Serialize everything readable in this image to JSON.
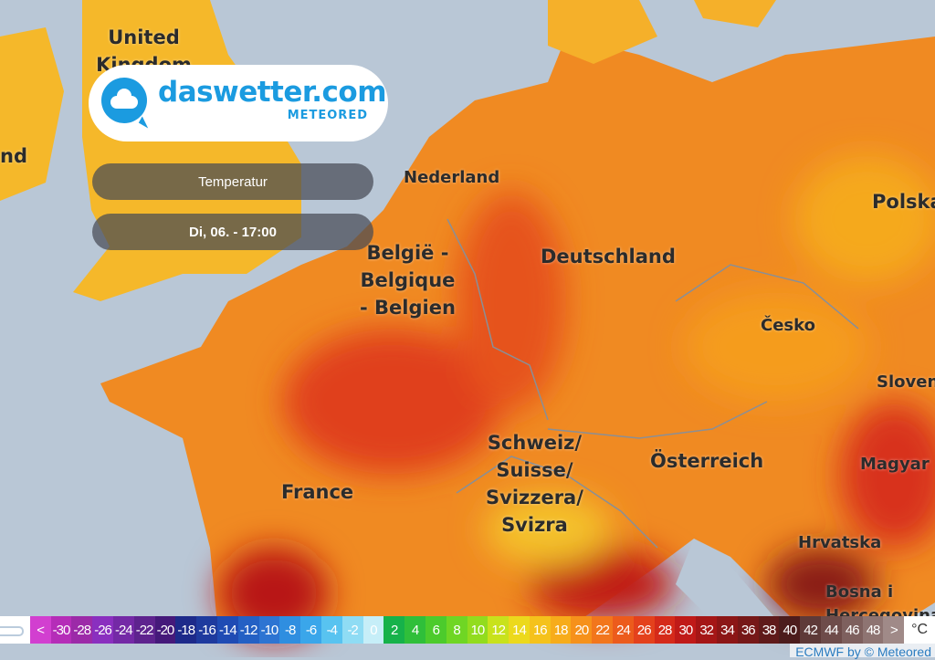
{
  "map": {
    "countries": [
      "United Kingdom",
      "Nederland",
      "België - Belgique - Belgien",
      "Deutschland",
      "Polska",
      "Česko",
      "France",
      "Schweiz/ Suisse/ Svizzera/ Svizra",
      "Österreich",
      "Slovenija",
      "Magyarország",
      "Hrvatska",
      "Bosna i Hercegovina",
      "Ireland"
    ],
    "labels": {
      "uk": "United Kingdom",
      "ireland_partial": "nd",
      "nl": "Nederland",
      "be": [
        "België -",
        "Belgique",
        "- Belgien"
      ],
      "de": "Deutschland",
      "pl": "Polska",
      "cz": "Česko",
      "fr": "France",
      "ch": [
        "Schweiz/",
        "Suisse/",
        "Svizzera/",
        "Svizra"
      ],
      "at": "Österreich",
      "si": "Sloven",
      "hu": "Magyar",
      "hr": "Hrvatska",
      "ba": [
        "Bosna i",
        "Hercegovina"
      ]
    }
  },
  "logo": {
    "name": "daswetter.com",
    "sub": "METEORED",
    "icon": "cloud-speech-bubble-icon",
    "color": "#1b9be0"
  },
  "layer_button": {
    "label": "Temperatur"
  },
  "time_button": {
    "label": "Di, 06. - 17:00"
  },
  "legend": {
    "unit": "°C",
    "cells": [
      {
        "t": "<",
        "c": "#d23fd0"
      },
      {
        "t": "-30",
        "c": "#b52db8"
      },
      {
        "t": "-28",
        "c": "#9c2aa8"
      },
      {
        "t": "-26",
        "c": "#8a2fbf"
      },
      {
        "t": "-24",
        "c": "#7429a6"
      },
      {
        "t": "-22",
        "c": "#5e238e"
      },
      {
        "t": "-20",
        "c": "#45197a"
      },
      {
        "t": "-18",
        "c": "#1d2a8a"
      },
      {
        "t": "-16",
        "c": "#1e3a9e"
      },
      {
        "t": "-14",
        "c": "#1f4bb4"
      },
      {
        "t": "-12",
        "c": "#2460c4"
      },
      {
        "t": "-10",
        "c": "#2d74d2"
      },
      {
        "t": "-8",
        "c": "#2f8ee0"
      },
      {
        "t": "-6",
        "c": "#3aa6ea"
      },
      {
        "t": "-4",
        "c": "#58c3f0"
      },
      {
        "t": "-2",
        "c": "#8fdcf4"
      },
      {
        "t": "0",
        "c": "#c6eef8"
      },
      {
        "t": "2",
        "c": "#16b24a"
      },
      {
        "t": "4",
        "c": "#2fbf3a"
      },
      {
        "t": "6",
        "c": "#4ccb2c"
      },
      {
        "t": "8",
        "c": "#6fd624"
      },
      {
        "t": "10",
        "c": "#92dc1e"
      },
      {
        "t": "12",
        "c": "#c8e21c"
      },
      {
        "t": "14",
        "c": "#ecd91c"
      },
      {
        "t": "16",
        "c": "#f5c21b"
      },
      {
        "t": "18",
        "c": "#f7ac1a"
      },
      {
        "t": "20",
        "c": "#f6911b"
      },
      {
        "t": "22",
        "c": "#f2761c"
      },
      {
        "t": "24",
        "c": "#ec5b1c"
      },
      {
        "t": "26",
        "c": "#e4411c"
      },
      {
        "t": "28",
        "c": "#d52a1a"
      },
      {
        "t": "30",
        "c": "#c01a18"
      },
      {
        "t": "32",
        "c": "#a51616"
      },
      {
        "t": "34",
        "c": "#8c1616"
      },
      {
        "t": "36",
        "c": "#761818"
      },
      {
        "t": "38",
        "c": "#5f1a1a"
      },
      {
        "t": "40",
        "c": "#4c1c1c"
      },
      {
        "t": "42",
        "c": "#5e3a38"
      },
      {
        "t": "44",
        "c": "#6e4c4a"
      },
      {
        "t": "46",
        "c": "#7e605e"
      },
      {
        "t": "48",
        "c": "#8e7472"
      },
      {
        "t": ">",
        "c": "#a08a88"
      }
    ]
  },
  "credit": "ECMWF by © Meteored"
}
